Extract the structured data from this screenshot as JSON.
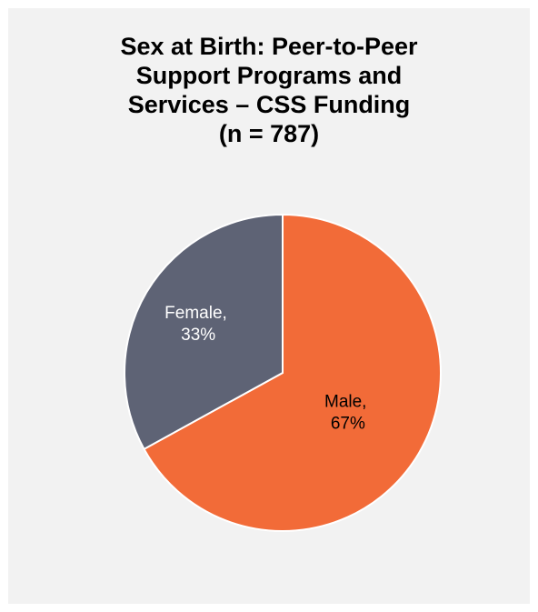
{
  "chart_data": {
    "type": "pie",
    "title_lines": [
      "Sex at Birth: Peer-to-Peer",
      "Support Programs and",
      "Services – CSS Funding",
      "(n = 787)"
    ],
    "slices": [
      {
        "name": "Male",
        "value": 67,
        "label_line1": "Male,",
        "label_line2": "67%",
        "color": "#f26b38",
        "label_color": "#000000"
      },
      {
        "name": "Female",
        "value": 33,
        "label_line1": "Female,",
        "label_line2": "33%",
        "color": "#5e6375",
        "label_color": "#ffffff"
      }
    ],
    "legend": "none",
    "background_color": "#f2f2f2"
  }
}
